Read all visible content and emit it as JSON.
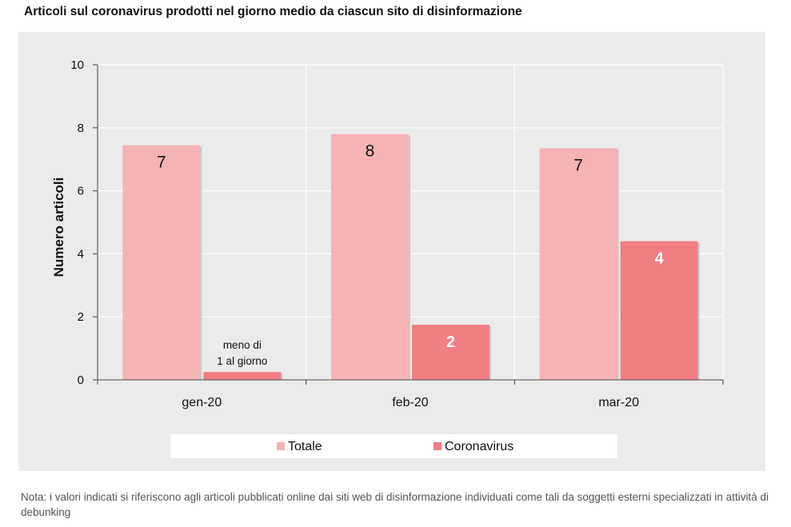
{
  "chart_data": {
    "type": "bar",
    "title": "Articoli sul coronavirus prodotti nel giorno medio da ciascun sito di disinformazione",
    "ylabel": "Numero articoli",
    "xlabel": "",
    "ylim": [
      0,
      10
    ],
    "yticks": [
      "0",
      "2",
      "4",
      "6",
      "8",
      "10"
    ],
    "categories": [
      "gen-20",
      "feb-20",
      "mar-20"
    ],
    "series": [
      {
        "name": "Totale",
        "color": "#f6b3b6",
        "values": [
          7.45,
          7.8,
          7.35
        ],
        "labels": [
          "7",
          "8",
          "7"
        ]
      },
      {
        "name": "Coronavirus",
        "color": "#f27e84",
        "values": [
          0.25,
          1.75,
          4.4
        ],
        "labels": [
          "",
          "2",
          "4"
        ]
      }
    ],
    "annotations": {
      "gen_coronavirus": [
        "meno di",
        "1 al giorno"
      ]
    },
    "legend": "bottom",
    "grid": true
  },
  "note": "Nota: i valori indicati si riferiscono agli articoli pubblicati online dai siti web di disinformazione individuati come tali da soggetti esterni specializzati in attività di debunking"
}
